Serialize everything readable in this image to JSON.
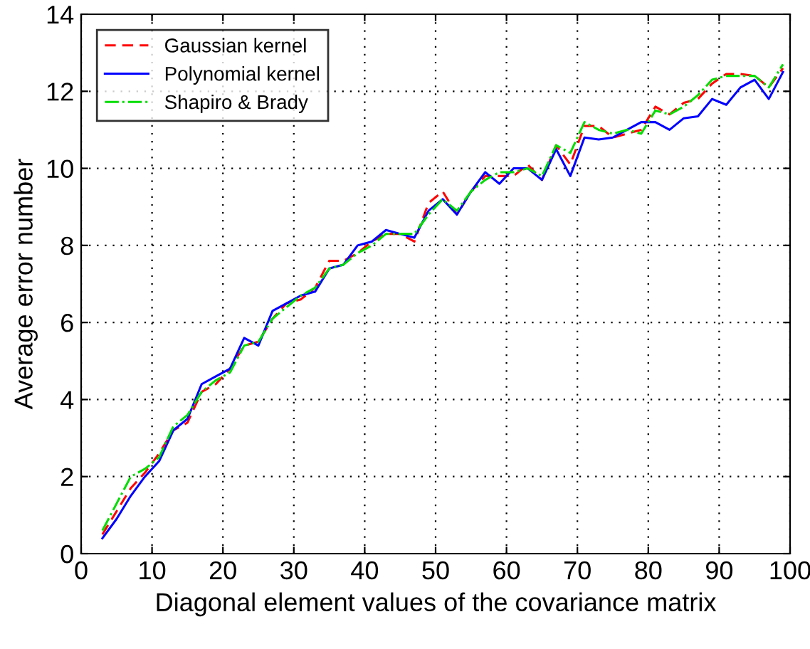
{
  "chart_data": {
    "type": "line",
    "xlabel": "Diagonal element values of the covariance matrix",
    "ylabel": "Average error number",
    "x": [
      3,
      5,
      7,
      9,
      11,
      13,
      15,
      17,
      19,
      21,
      23,
      25,
      27,
      29,
      31,
      33,
      35,
      37,
      39,
      41,
      43,
      45,
      47,
      49,
      51,
      53,
      55,
      57,
      59,
      61,
      63,
      65,
      67,
      69,
      71,
      73,
      75,
      77,
      79,
      81,
      83,
      85,
      87,
      89,
      91,
      93,
      95,
      97,
      99
    ],
    "series": [
      {
        "name": "Gaussian kernel",
        "color": "#ff0000",
        "line_style": "dashed",
        "values": [
          0.5,
          1.1,
          1.7,
          2.1,
          2.6,
          3.2,
          3.4,
          4.2,
          4.4,
          4.8,
          5.4,
          5.5,
          6.1,
          6.5,
          6.6,
          6.9,
          7.6,
          7.6,
          7.8,
          8.1,
          8.3,
          8.3,
          8.1,
          9.1,
          9.4,
          8.8,
          9.4,
          9.8,
          9.8,
          9.8,
          10.1,
          9.7,
          10.6,
          10.1,
          11.1,
          11.1,
          10.8,
          10.9,
          11.0,
          11.6,
          11.4,
          11.7,
          11.8,
          12.2,
          12.45,
          12.45,
          12.4,
          12.1,
          12.6
        ]
      },
      {
        "name": "Polynomial kernel",
        "color": "#0000ff",
        "line_style": "solid",
        "values": [
          0.4,
          0.9,
          1.5,
          2.0,
          2.4,
          3.2,
          3.5,
          4.4,
          4.6,
          4.8,
          5.6,
          5.4,
          6.3,
          6.5,
          6.7,
          6.8,
          7.4,
          7.5,
          8.0,
          8.1,
          8.4,
          8.3,
          8.2,
          8.9,
          9.2,
          8.8,
          9.4,
          9.9,
          9.6,
          10.0,
          10.0,
          9.7,
          10.5,
          9.8,
          10.8,
          10.75,
          10.8,
          11.0,
          11.2,
          11.2,
          11.0,
          11.3,
          11.35,
          11.8,
          11.65,
          12.1,
          12.3,
          11.8,
          12.5
        ]
      },
      {
        "name": "Shapiro & Brady",
        "color": "#00dd00",
        "line_style": "dashdot",
        "values": [
          0.6,
          1.3,
          2.0,
          2.2,
          2.5,
          3.3,
          3.6,
          4.2,
          4.5,
          4.7,
          5.4,
          5.5,
          6.1,
          6.4,
          6.7,
          6.9,
          7.4,
          7.5,
          7.8,
          8.0,
          8.3,
          8.3,
          8.3,
          8.8,
          9.2,
          8.9,
          9.4,
          9.7,
          9.9,
          9.9,
          10.0,
          9.8,
          10.6,
          10.4,
          11.2,
          11.0,
          10.9,
          11.0,
          10.9,
          11.5,
          11.4,
          11.6,
          11.9,
          12.3,
          12.4,
          12.4,
          12.4,
          12.1,
          12.7
        ]
      }
    ],
    "xlim": [
      0,
      100
    ],
    "ylim": [
      0,
      14
    ],
    "xticks": [
      0,
      10,
      20,
      30,
      40,
      50,
      60,
      70,
      80,
      90,
      100
    ],
    "yticks": [
      0,
      2,
      4,
      6,
      8,
      10,
      12,
      14
    ],
    "grid": true,
    "legend": "top left",
    "marker": "none"
  }
}
